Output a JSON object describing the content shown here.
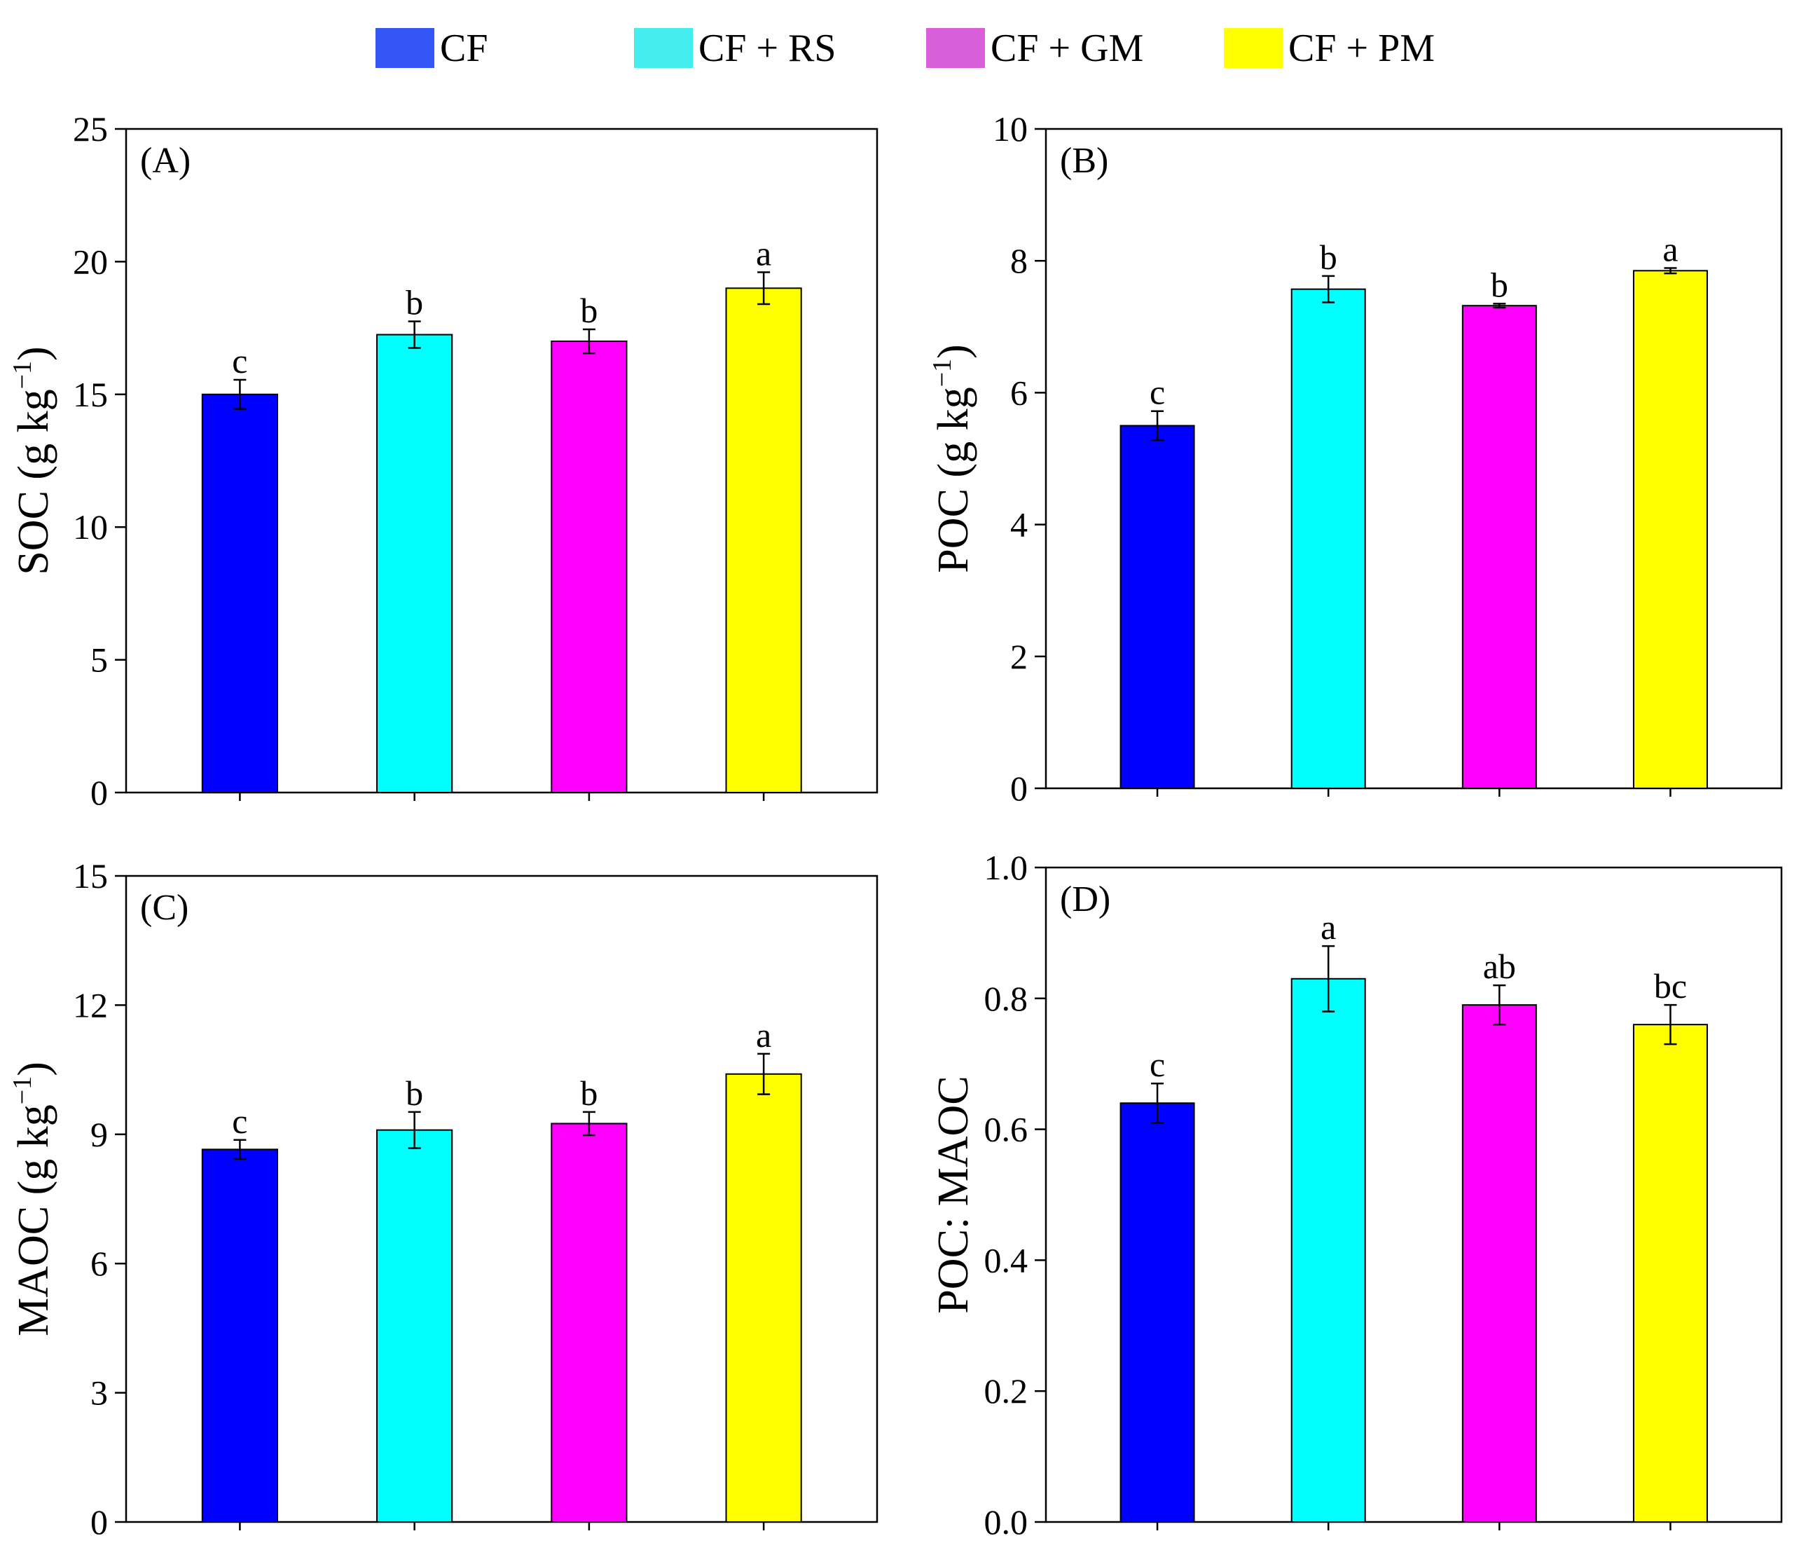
{
  "legend": [
    {
      "label": "CF",
      "color": "#3355f6"
    },
    {
      "label": "CF + RS",
      "color": "#44eeee"
    },
    {
      "label": "CF + GM",
      "color": "#d95ed9"
    },
    {
      "label": "CF + PM",
      "color": "#ffff00"
    }
  ],
  "chart_data": [
    {
      "type": "bar",
      "panel": "(A)",
      "ylabel": "SOC (g kg",
      "ylabel_sup": "−1",
      "ylabel_tail": ")",
      "ylim": [
        0,
        25
      ],
      "yticks": [
        0,
        5,
        10,
        15,
        20,
        25
      ],
      "categories": [
        "CF",
        "CF + RS",
        "CF + GM",
        "CF + PM"
      ],
      "values": [
        15.0,
        17.25,
        17.0,
        19.0
      ],
      "errors": [
        0.55,
        0.5,
        0.45,
        0.6
      ],
      "letters": [
        "c",
        "b",
        "b",
        "a"
      ],
      "colors": [
        "#0000ff",
        "#00ffff",
        "#ff00ff",
        "#ffff00"
      ]
    },
    {
      "type": "bar",
      "panel": "(B)",
      "ylabel": "POC (g kg",
      "ylabel_sup": "−1",
      "ylabel_tail": ")",
      "ylim": [
        0,
        10
      ],
      "yticks": [
        0,
        2,
        4,
        6,
        8,
        10
      ],
      "categories": [
        "CF",
        "CF + RS",
        "CF + GM",
        "CF + PM"
      ],
      "values": [
        5.5,
        7.57,
        7.32,
        7.85
      ],
      "errors": [
        0.22,
        0.2,
        0.03,
        0.04
      ],
      "letters": [
        "c",
        "b",
        "b",
        "a"
      ],
      "colors": [
        "#0000ff",
        "#00ffff",
        "#ff00ff",
        "#ffff00"
      ]
    },
    {
      "type": "bar",
      "panel": "(C)",
      "ylabel": "MAOC (g kg",
      "ylabel_sup": "−1",
      "ylabel_tail": ")",
      "ylim": [
        0,
        15
      ],
      "yticks": [
        0,
        3,
        6,
        9,
        12,
        15
      ],
      "categories": [
        "CF",
        "CF + RS",
        "CF + GM",
        "CF + PM"
      ],
      "values": [
        8.65,
        9.1,
        9.25,
        10.4
      ],
      "errors": [
        0.22,
        0.42,
        0.27,
        0.47
      ],
      "letters": [
        "c",
        "b",
        "b",
        "a"
      ],
      "colors": [
        "#0000ff",
        "#00ffff",
        "#ff00ff",
        "#ffff00"
      ]
    },
    {
      "type": "bar",
      "panel": "(D)",
      "ylabel": "POC: MAOC",
      "ylabel_sup": "",
      "ylabel_tail": "",
      "ylim": [
        0,
        1.0
      ],
      "yticks": [
        0.0,
        0.2,
        0.4,
        0.6,
        0.8,
        1.0
      ],
      "ytick_labels": [
        "0.0",
        "0.2",
        "0.4",
        "0.6",
        "0.8",
        "1.0"
      ],
      "categories": [
        "CF",
        "CF + RS",
        "CF + GM",
        "CF + PM"
      ],
      "values": [
        0.64,
        0.83,
        0.79,
        0.76
      ],
      "errors": [
        0.03,
        0.05,
        0.03,
        0.03
      ],
      "letters": [
        "c",
        "a",
        "ab",
        "bc"
      ],
      "colors": [
        "#0000ff",
        "#00ffff",
        "#ff00ff",
        "#ffff00"
      ]
    }
  ]
}
